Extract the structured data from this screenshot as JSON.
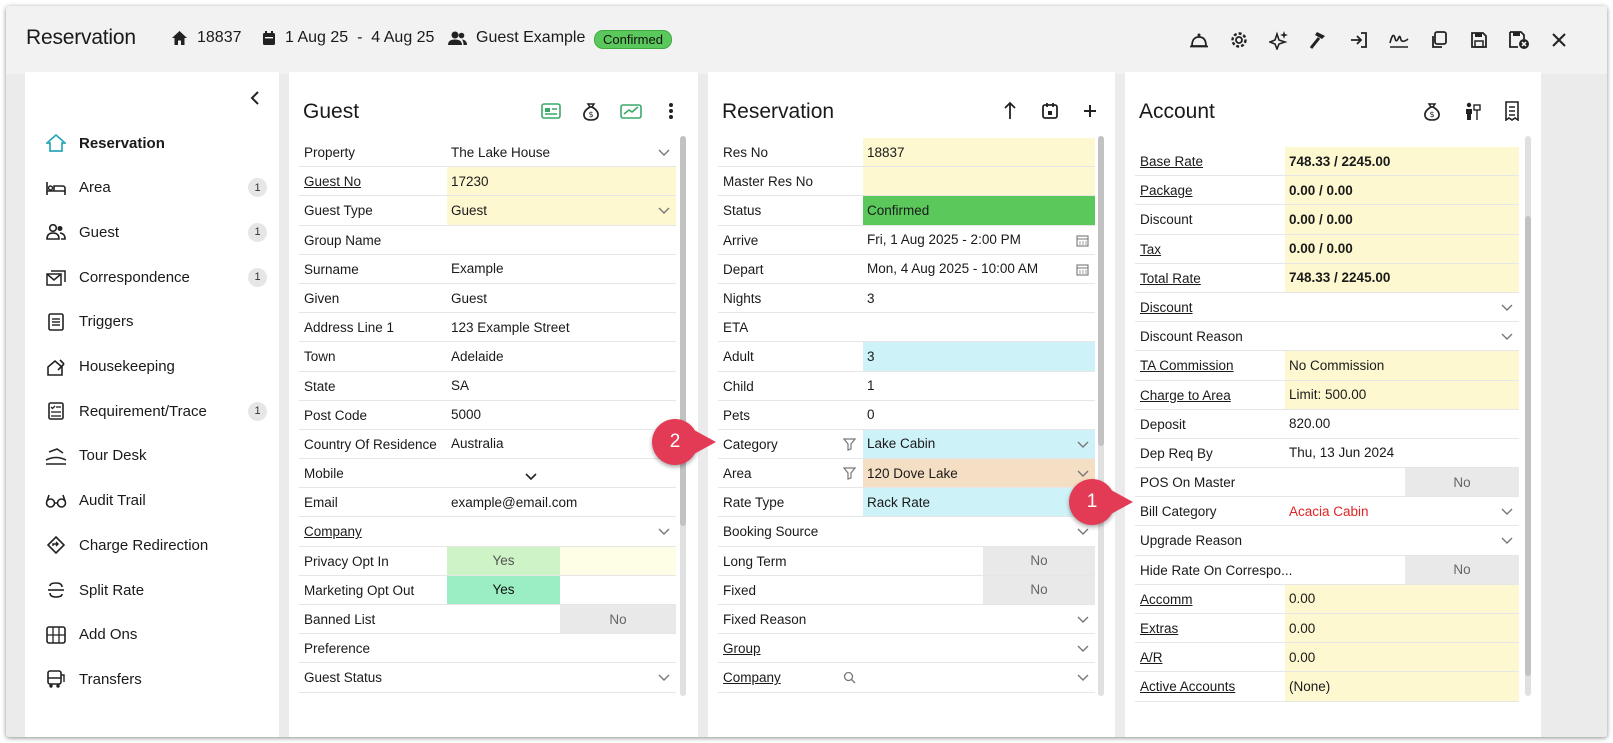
{
  "header": {
    "title": "Reservation",
    "res_no": "18837",
    "dates": "1 Aug 25  -  4 Aug 25",
    "guest": "Guest Example",
    "status": "Confirmed",
    "toolbar": [
      "bell-icon",
      "gear-icon",
      "sparkle-icon",
      "hammer-icon",
      "sign-in-icon",
      "signature-icon",
      "copy-icon",
      "save-icon",
      "save-close-icon",
      "close-icon"
    ]
  },
  "nav": {
    "items": [
      {
        "label": "Reservation",
        "icon": "home-icon",
        "count": ""
      },
      {
        "label": "Area",
        "icon": "bed-icon",
        "count": "1"
      },
      {
        "label": "Guest",
        "icon": "users-icon",
        "count": "1"
      },
      {
        "label": "Correspondence",
        "icon": "mail-icon",
        "count": "1"
      },
      {
        "label": "Triggers",
        "icon": "list-icon",
        "count": ""
      },
      {
        "label": "Housekeeping",
        "icon": "housekeeping-icon",
        "count": ""
      },
      {
        "label": "Requirement/Trace",
        "icon": "checklist-icon",
        "count": "1"
      },
      {
        "label": "Tour Desk",
        "icon": "tour-icon",
        "count": ""
      },
      {
        "label": "Audit Trail",
        "icon": "glasses-icon",
        "count": ""
      },
      {
        "label": "Charge Redirection",
        "icon": "redirect-icon",
        "count": ""
      },
      {
        "label": "Split Rate",
        "icon": "split-icon",
        "count": ""
      },
      {
        "label": "Add Ons",
        "icon": "addons-icon",
        "count": ""
      },
      {
        "label": "Transfers",
        "icon": "bus-icon",
        "count": ""
      }
    ]
  },
  "guest": {
    "title": "Guest",
    "rows": [
      {
        "label": "Property",
        "value": "The Lake House",
        "type": "dropdown"
      },
      {
        "label": "Guest No",
        "value": "17230",
        "link": true,
        "color": "yellow"
      },
      {
        "label": "Guest Type",
        "value": "Guest",
        "type": "dropdown",
        "color": "yellow"
      },
      {
        "label": "Group Name",
        "value": ""
      },
      {
        "label": "Surname",
        "value": "Example"
      },
      {
        "label": "Given",
        "value": "Guest"
      },
      {
        "label": "Address Line 1",
        "value": "123 Example Street"
      },
      {
        "label": "Town",
        "value": "Adelaide"
      },
      {
        "label": "State",
        "value": "SA"
      },
      {
        "label": "Post Code",
        "value": "5000"
      },
      {
        "label": "Country Of Residence",
        "value": "Australia"
      },
      {
        "label": "Mobile",
        "value": "",
        "type": "mobile"
      },
      {
        "label": "Email",
        "value": "example@email.com"
      },
      {
        "label": "Company",
        "value": "",
        "link": true,
        "type": "dropdown"
      },
      {
        "label": "Privacy Opt In",
        "value": "Yes",
        "type": "privacy"
      },
      {
        "label": "Marketing Opt Out",
        "value": "Yes",
        "type": "marketing"
      },
      {
        "label": "Banned List",
        "value": "No",
        "type": "banned"
      },
      {
        "label": "Preference",
        "value": ""
      },
      {
        "label": "Guest Status",
        "value": "",
        "type": "dropdown"
      }
    ]
  },
  "reservation": {
    "title": "Reservation",
    "rows": [
      {
        "label": "Res No",
        "value": "18837",
        "color": "yellow"
      },
      {
        "label": "Master Res No",
        "value": "",
        "color": "yellow"
      },
      {
        "label": "Status",
        "value": "Confirmed",
        "color": "green"
      },
      {
        "label": "Arrive",
        "value": "Fri, 1 Aug 2025 - 2:00 PM",
        "type": "date"
      },
      {
        "label": "Depart",
        "value": "Mon, 4 Aug 2025 - 10:00 AM",
        "type": "date"
      },
      {
        "label": "Nights",
        "value": "3"
      },
      {
        "label": "ETA",
        "value": ""
      },
      {
        "label": "Adult",
        "value": "3",
        "color": "cyan"
      },
      {
        "label": "Child",
        "value": "1"
      },
      {
        "label": "Pets",
        "value": "0"
      },
      {
        "label": "Category",
        "value": "Lake Cabin",
        "color": "cyan",
        "type": "dropdown",
        "filter": true
      },
      {
        "label": "Area",
        "value": "120 Dove Lake",
        "color": "peach",
        "type": "dropdown",
        "filter": true
      },
      {
        "label": "Rate Type",
        "value": "Rack Rate",
        "color": "cyan",
        "type": "dropdown"
      },
      {
        "label": "Booking Source",
        "value": "",
        "type": "dropdown"
      },
      {
        "label": "Long Term",
        "value": "No",
        "type": "toggle"
      },
      {
        "label": "Fixed",
        "value": "No",
        "type": "toggle"
      },
      {
        "label": "Fixed Reason",
        "value": "",
        "type": "dropdown"
      },
      {
        "label": "Group",
        "value": "",
        "link": true,
        "type": "dropdown"
      },
      {
        "label": "Company",
        "value": "",
        "link": true,
        "type": "dropdown",
        "search": true
      }
    ]
  },
  "account": {
    "title": "Account",
    "rows": [
      {
        "label": "Base Rate",
        "value": "748.33 / 2245.00",
        "link": true,
        "color": "yellow",
        "bold": true
      },
      {
        "label": "Package",
        "value": "0.00 / 0.00",
        "link": true,
        "color": "yellow",
        "bold": true
      },
      {
        "label": "Discount",
        "value": "0.00 / 0.00",
        "color": "yellow",
        "bold": true
      },
      {
        "label": "Tax",
        "value": "0.00 / 0.00",
        "link": true,
        "color": "yellow",
        "bold": true
      },
      {
        "label": "Total Rate",
        "value": "748.33 / 2245.00",
        "link": true,
        "color": "yellow",
        "bold": true
      },
      {
        "label": "Discount",
        "value": "",
        "link": true,
        "type": "dropdown"
      },
      {
        "label": "Discount Reason",
        "value": "",
        "type": "dropdown"
      },
      {
        "label": "TA Commission",
        "value": "No Commission",
        "link": true,
        "color": "yellow"
      },
      {
        "label": "Charge to Area",
        "value": "Limit: 500.00",
        "link": true,
        "color": "yellow"
      },
      {
        "label": "Deposit",
        "value": "820.00"
      },
      {
        "label": "Dep Req By",
        "value": "Thu, 13 Jun 2024"
      },
      {
        "label": "POS On Master",
        "value": "No",
        "type": "toggle"
      },
      {
        "label": "Bill Category",
        "value": "Acacia Cabin",
        "type": "dropdown",
        "red": true
      },
      {
        "label": "Upgrade Reason",
        "value": "",
        "type": "dropdown"
      },
      {
        "label": "Hide Rate On Correspo...",
        "value": "No",
        "type": "toggle"
      },
      {
        "label": "Accomm",
        "value": "0.00",
        "link": true,
        "color": "yellow"
      },
      {
        "label": "Extras",
        "value": "0.00",
        "link": true,
        "color": "yellow"
      },
      {
        "label": "A/R",
        "value": "0.00",
        "link": true,
        "color": "yellow"
      },
      {
        "label": "Active Accounts",
        "value": "(None)",
        "link": true,
        "color": "yellow"
      }
    ]
  },
  "callouts": [
    "1",
    "2"
  ]
}
